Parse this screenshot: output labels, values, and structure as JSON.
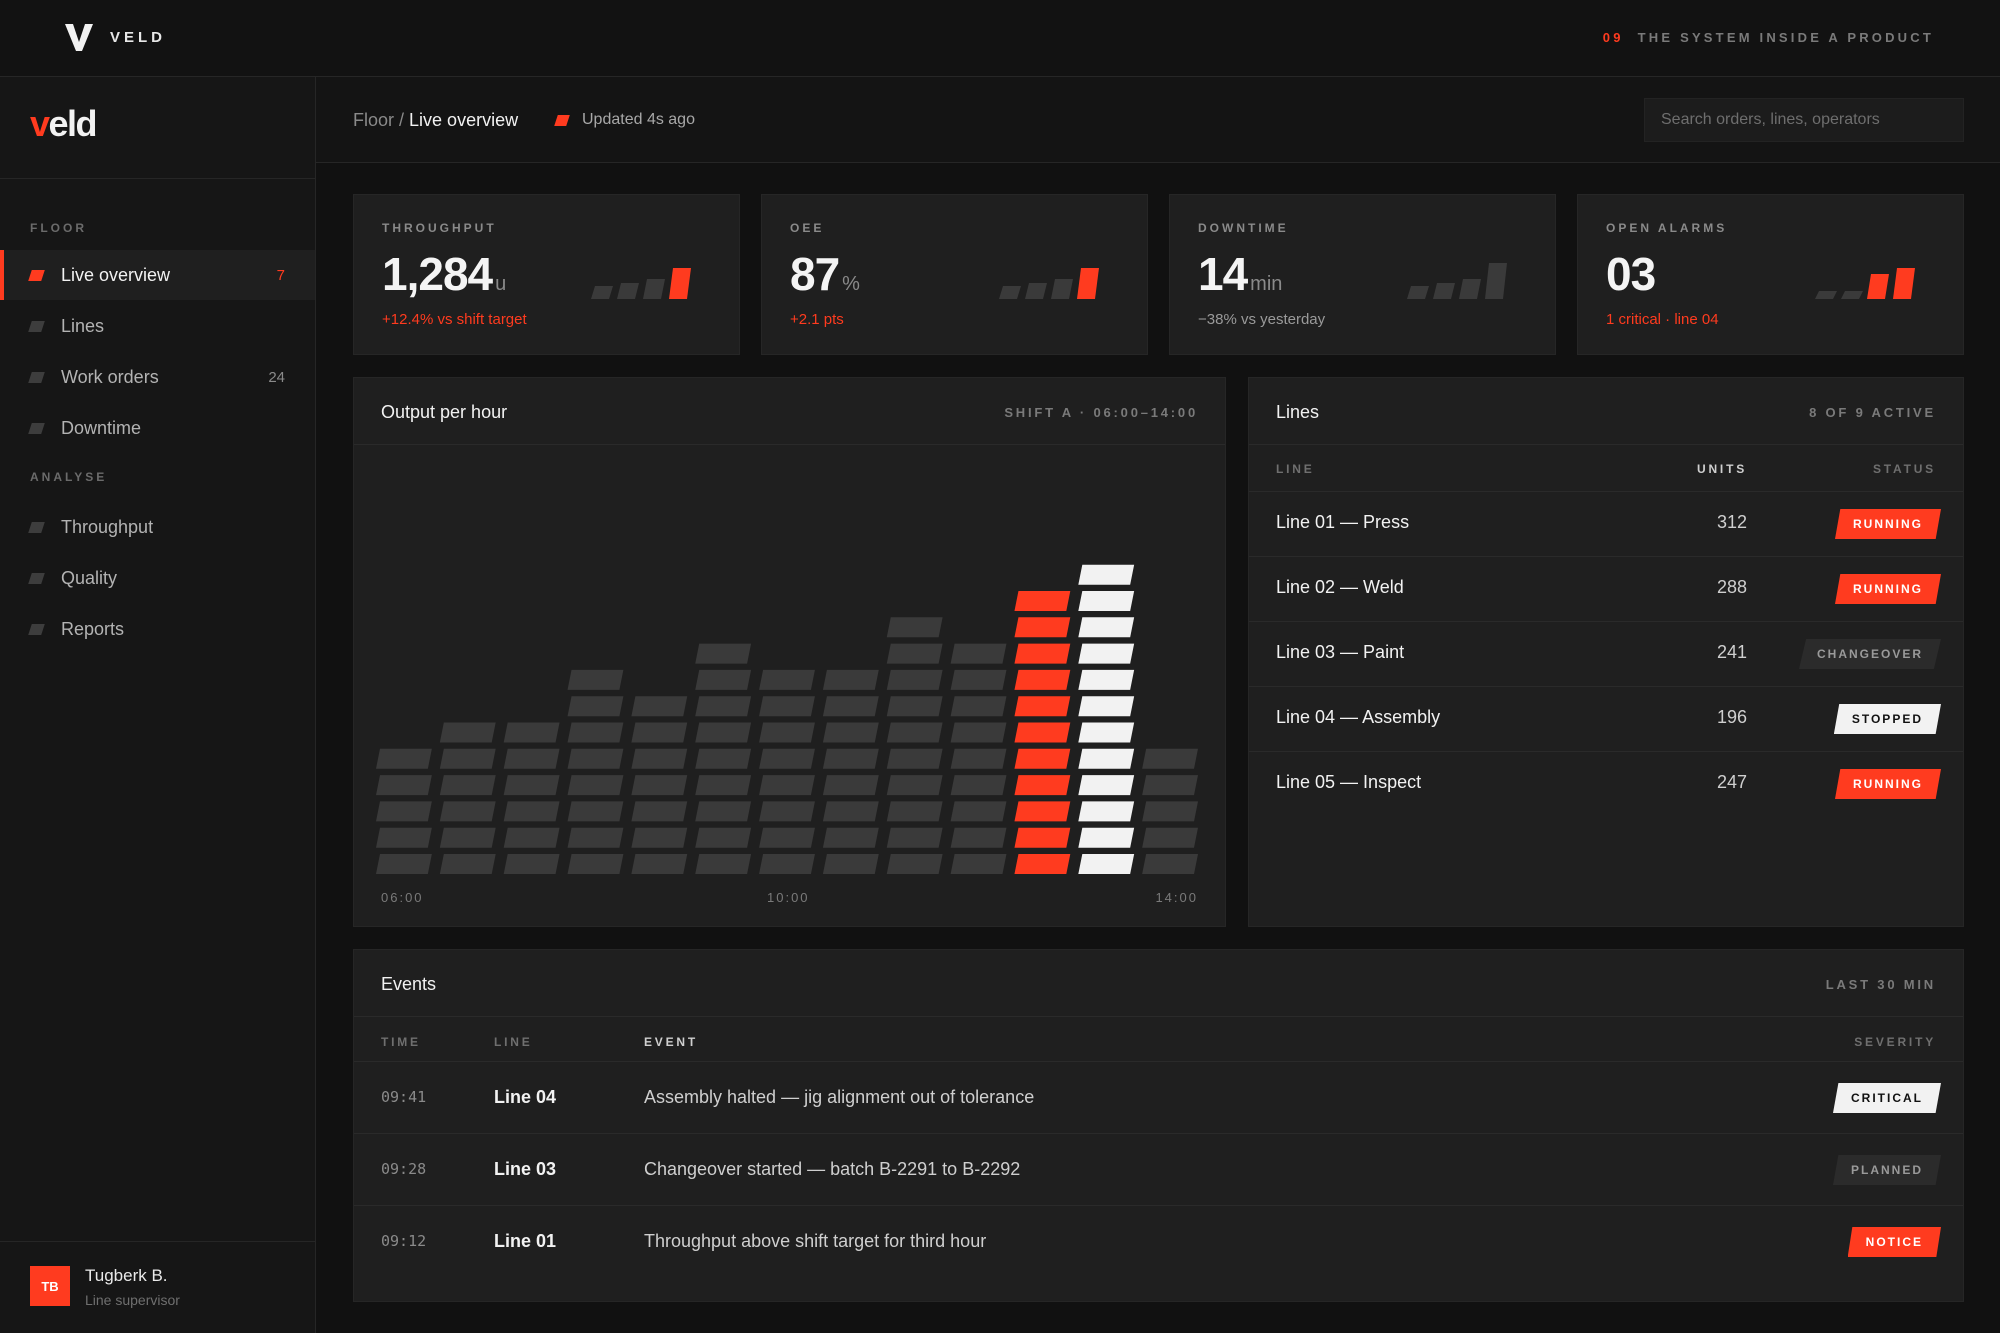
{
  "topbar": {
    "brand": "VELD",
    "chapter_num": "09",
    "chapter_title": "THE SYSTEM INSIDE A PRODUCT"
  },
  "sidebar": {
    "logo_v": "v",
    "logo_rest": "eld",
    "sections": [
      {
        "label": "FLOOR",
        "items": [
          {
            "label": "Live overview",
            "count": "7",
            "active": true
          },
          {
            "label": "Lines",
            "count": ""
          },
          {
            "label": "Work orders",
            "count": "24"
          },
          {
            "label": "Downtime",
            "count": ""
          }
        ]
      },
      {
        "label": "ANALYSE",
        "items": [
          {
            "label": "Throughput",
            "count": ""
          },
          {
            "label": "Quality",
            "count": ""
          },
          {
            "label": "Reports",
            "count": ""
          }
        ]
      }
    ],
    "user": {
      "initials": "TB",
      "name": "Tugberk B.",
      "role": "Line supervisor"
    }
  },
  "header": {
    "crumb_parent": "Floor",
    "crumb_sep": " / ",
    "crumb_current": "Live overview",
    "updated": "Updated 4s ago",
    "search_placeholder": "Search orders, lines, operators"
  },
  "kpis": [
    {
      "label": "THROUGHPUT",
      "value": "1,284",
      "unit": "u",
      "delta": "+12.4% vs shift target",
      "delta_tone": "accent",
      "spark": [
        1,
        1,
        1,
        2
      ]
    },
    {
      "label": "OEE",
      "value": "87",
      "unit": "%",
      "delta": "+2.1 pts",
      "delta_tone": "accent",
      "spark": [
        1,
        1,
        1,
        2
      ]
    },
    {
      "label": "DOWNTIME",
      "value": "14",
      "unit": "min",
      "delta": "−38% vs yesterday",
      "delta_tone": "neutral",
      "spark": [
        1,
        1,
        1,
        1
      ]
    },
    {
      "label": "OPEN ALARMS",
      "value": "03",
      "unit": "",
      "delta": "1 critical · line 04",
      "delta_tone": "accent",
      "spark": [
        0,
        0,
        2,
        2
      ]
    }
  ],
  "output_panel": {
    "title": "Output per hour",
    "meta": "SHIFT A · 06:00–14:00",
    "x_labels": [
      "06:00",
      "10:00",
      "14:00"
    ]
  },
  "chart_data": {
    "type": "bar",
    "title": "Output per hour",
    "x_labels": [
      "06:00",
      "10:00",
      "14:00"
    ],
    "values": [
      5,
      6,
      6,
      8,
      7,
      9,
      8,
      8,
      10,
      9,
      11,
      12,
      5
    ],
    "highlight": {
      "10": "accent",
      "11": "white"
    },
    "colors": {
      "default": "#3a3a3a",
      "accent": "#ff3b1f",
      "white": "#f2f2f2"
    }
  },
  "lines_panel": {
    "title": "Lines",
    "meta": "8 OF 9 ACTIVE",
    "headers": {
      "line": "LINE",
      "units": "UNITS",
      "status": "STATUS"
    },
    "rows": [
      {
        "name": "Line 01 — Press",
        "units": "312",
        "status": "RUNNING",
        "tone": "running"
      },
      {
        "name": "Line 02 — Weld",
        "units": "288",
        "status": "RUNNING",
        "tone": "running"
      },
      {
        "name": "Line 03 — Paint",
        "units": "241",
        "status": "CHANGEOVER",
        "tone": "changeover"
      },
      {
        "name": "Line 04 — Assembly",
        "units": "196",
        "status": "STOPPED",
        "tone": "stopped"
      },
      {
        "name": "Line 05 — Inspect",
        "units": "247",
        "status": "RUNNING",
        "tone": "running"
      }
    ]
  },
  "events_panel": {
    "title": "Events",
    "meta": "LAST 30 MIN",
    "headers": {
      "time": "TIME",
      "line": "LINE",
      "event": "EVENT",
      "severity": "SEVERITY"
    },
    "rows": [
      {
        "time": "09:41",
        "line": "Line 04",
        "event": "Assembly halted — jig alignment out of tolerance",
        "severity": "CRITICAL",
        "tone": "critical"
      },
      {
        "time": "09:28",
        "line": "Line 03",
        "event": "Changeover started — batch B-2291 to B-2292",
        "severity": "PLANNED",
        "tone": "planned"
      },
      {
        "time": "09:12",
        "line": "Line 01",
        "event": "Throughput above shift target for third hour",
        "severity": "NOTICE",
        "tone": "notice"
      }
    ]
  },
  "colors": {
    "accent": "#ff3b1f",
    "bg": "#111111",
    "panel": "#1f1f1f"
  }
}
